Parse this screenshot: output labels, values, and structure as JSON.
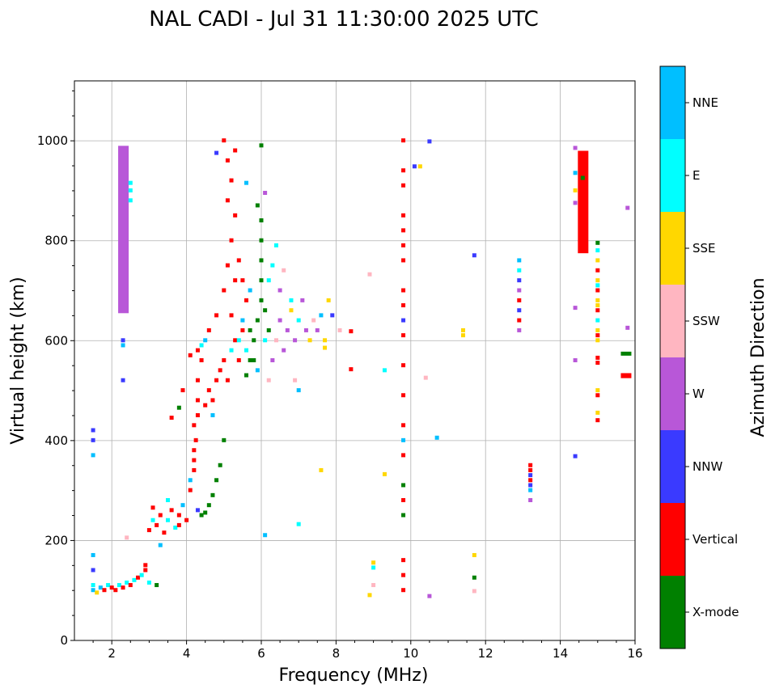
{
  "chart_data": {
    "type": "scatter",
    "title": "NAL CADI - Jul 31 11:30:00 2025 UTC",
    "xlabel": "Frequency (MHz)",
    "ylabel": "Virtual height (km)",
    "xlim": [
      1,
      16
    ],
    "ylim": [
      0,
      1120
    ],
    "xticks": [
      2,
      4,
      6,
      8,
      10,
      12,
      14,
      16
    ],
    "yticks": [
      0,
      200,
      400,
      600,
      800,
      1000
    ],
    "grid": true,
    "colorbar": {
      "label": "Azimuth Direction",
      "categories": [
        "X-mode",
        "Vertical",
        "NNW",
        "W",
        "SSW",
        "SSE",
        "E",
        "NNE"
      ],
      "colors": [
        "#008000",
        "#ff0000",
        "#3a3aff",
        "#b857d8",
        "#ffb6c1",
        "#ffd700",
        "#00ffff",
        "#00bfff"
      ]
    },
    "segments_note": "[freq_MHz, h_start_km, h_end_km, direction_index]",
    "segments": [
      [
        2.3,
        655,
        990,
        3
      ],
      [
        14.6,
        775,
        980,
        1
      ],
      [
        15.75,
        525,
        535,
        1
      ],
      [
        15.75,
        570,
        578,
        0
      ]
    ],
    "points_note": "[freq_MHz, height_km, direction_index]",
    "points": [
      [
        1.5,
        100,
        7
      ],
      [
        1.5,
        110,
        6
      ],
      [
        1.5,
        140,
        2
      ],
      [
        1.5,
        170,
        7
      ],
      [
        1.5,
        370,
        7
      ],
      [
        1.5,
        400,
        2
      ],
      [
        1.5,
        420,
        2
      ],
      [
        1.6,
        95,
        5
      ],
      [
        1.7,
        105,
        7
      ],
      [
        1.8,
        100,
        1
      ],
      [
        1.9,
        110,
        6
      ],
      [
        2.0,
        105,
        1
      ],
      [
        2.1,
        100,
        1
      ],
      [
        2.2,
        110,
        6
      ],
      [
        2.3,
        105,
        1
      ],
      [
        2.4,
        115,
        6
      ],
      [
        2.5,
        110,
        1
      ],
      [
        2.6,
        120,
        6
      ],
      [
        2.7,
        125,
        1
      ],
      [
        2.8,
        130,
        6
      ],
      [
        2.9,
        140,
        1
      ],
      [
        2.9,
        150,
        1
      ],
      [
        3.0,
        115,
        6
      ],
      [
        3.2,
        110,
        0
      ],
      [
        3.3,
        190,
        7
      ],
      [
        2.3,
        520,
        2
      ],
      [
        2.3,
        590,
        7
      ],
      [
        2.3,
        600,
        2
      ],
      [
        2.5,
        880,
        6
      ],
      [
        2.5,
        900,
        6
      ],
      [
        2.5,
        915,
        6
      ],
      [
        2.4,
        205,
        4
      ],
      [
        3.0,
        220,
        1
      ],
      [
        3.1,
        240,
        6
      ],
      [
        3.2,
        230,
        1
      ],
      [
        3.3,
        250,
        1
      ],
      [
        3.4,
        215,
        1
      ],
      [
        3.5,
        240,
        6
      ],
      [
        3.6,
        260,
        1
      ],
      [
        3.7,
        225,
        6
      ],
      [
        3.8,
        250,
        1
      ],
      [
        3.9,
        270,
        7
      ],
      [
        4.0,
        240,
        1
      ],
      [
        3.1,
        265,
        1
      ],
      [
        3.5,
        280,
        6
      ],
      [
        3.8,
        230,
        1
      ],
      [
        4.1,
        300,
        1
      ],
      [
        4.1,
        320,
        7
      ],
      [
        4.2,
        340,
        1
      ],
      [
        4.2,
        360,
        1
      ],
      [
        4.2,
        380,
        1
      ],
      [
        4.25,
        400,
        1
      ],
      [
        4.2,
        430,
        1
      ],
      [
        4.3,
        260,
        2
      ],
      [
        4.4,
        250,
        0
      ],
      [
        4.5,
        255,
        0
      ],
      [
        4.6,
        270,
        0
      ],
      [
        4.7,
        290,
        0
      ],
      [
        4.8,
        320,
        0
      ],
      [
        4.9,
        350,
        0
      ],
      [
        5.0,
        400,
        0
      ],
      [
        4.3,
        450,
        1
      ],
      [
        4.3,
        480,
        1
      ],
      [
        4.3,
        520,
        1
      ],
      [
        4.4,
        560,
        1
      ],
      [
        4.4,
        590,
        6
      ],
      [
        4.5,
        470,
        1
      ],
      [
        4.6,
        500,
        1
      ],
      [
        4.7,
        480,
        1
      ],
      [
        4.8,
        520,
        1
      ],
      [
        4.9,
        540,
        1
      ],
      [
        5.0,
        560,
        1
      ],
      [
        5.1,
        520,
        1
      ],
      [
        5.2,
        580,
        6
      ],
      [
        5.3,
        600,
        1
      ],
      [
        5.4,
        560,
        1
      ],
      [
        5.5,
        620,
        1
      ],
      [
        4.1,
        570,
        1
      ],
      [
        4.3,
        580,
        1
      ],
      [
        4.5,
        600,
        7
      ],
      [
        4.6,
        620,
        1
      ],
      [
        4.8,
        650,
        1
      ],
      [
        5.0,
        700,
        1
      ],
      [
        5.1,
        750,
        1
      ],
      [
        5.2,
        800,
        1
      ],
      [
        5.3,
        850,
        1
      ],
      [
        5.1,
        880,
        1
      ],
      [
        5.2,
        920,
        1
      ],
      [
        5.1,
        960,
        1
      ],
      [
        5.3,
        980,
        1
      ],
      [
        5.0,
        1000,
        1
      ],
      [
        5.4,
        760,
        1
      ],
      [
        5.5,
        720,
        1
      ],
      [
        5.6,
        680,
        1
      ],
      [
        5.3,
        720,
        1
      ],
      [
        5.2,
        650,
        1
      ],
      [
        4.7,
        450,
        7
      ],
      [
        3.9,
        500,
        1
      ],
      [
        3.8,
        465,
        0
      ],
      [
        3.6,
        445,
        1
      ],
      [
        4.8,
        975,
        2
      ],
      [
        5.6,
        530,
        0
      ],
      [
        5.7,
        560,
        0
      ],
      [
        5.8,
        600,
        0
      ],
      [
        5.9,
        640,
        0
      ],
      [
        6.0,
        680,
        0
      ],
      [
        6.0,
        720,
        0
      ],
      [
        6.0,
        760,
        0
      ],
      [
        6.0,
        800,
        0
      ],
      [
        6.0,
        840,
        0
      ],
      [
        6.0,
        990,
        0
      ],
      [
        5.9,
        870,
        0
      ],
      [
        5.8,
        560,
        0
      ],
      [
        5.7,
        620,
        0
      ],
      [
        5.6,
        580,
        6
      ],
      [
        5.5,
        640,
        7
      ],
      [
        5.4,
        600,
        6
      ],
      [
        5.7,
        700,
        7
      ],
      [
        5.9,
        540,
        7
      ],
      [
        6.1,
        600,
        6
      ],
      [
        6.2,
        620,
        0
      ],
      [
        6.1,
        660,
        0
      ],
      [
        6.2,
        720,
        6
      ],
      [
        6.1,
        210,
        7
      ],
      [
        6.1,
        895,
        3
      ],
      [
        5.6,
        915,
        7
      ],
      [
        6.3,
        560,
        3
      ],
      [
        6.4,
        600,
        4
      ],
      [
        6.5,
        640,
        3
      ],
      [
        6.6,
        580,
        3
      ],
      [
        6.7,
        620,
        3
      ],
      [
        6.8,
        660,
        5
      ],
      [
        6.9,
        600,
        3
      ],
      [
        7.0,
        640,
        6
      ],
      [
        7.1,
        680,
        3
      ],
      [
        7.2,
        620,
        3
      ],
      [
        7.3,
        600,
        5
      ],
      [
        7.4,
        640,
        4
      ],
      [
        7.5,
        620,
        3
      ],
      [
        7.6,
        650,
        7
      ],
      [
        7.7,
        600,
        5
      ],
      [
        6.3,
        750,
        6
      ],
      [
        6.4,
        790,
        6
      ],
      [
        6.5,
        700,
        3
      ],
      [
        6.6,
        740,
        4
      ],
      [
        6.8,
        680,
        6
      ],
      [
        7.0,
        500,
        7
      ],
      [
        6.9,
        520,
        4
      ],
      [
        6.2,
        520,
        4
      ],
      [
        7.6,
        340,
        5
      ],
      [
        7.7,
        585,
        5
      ],
      [
        7.8,
        680,
        5
      ],
      [
        7.9,
        650,
        2
      ],
      [
        8.1,
        620,
        4
      ],
      [
        8.4,
        618,
        1
      ],
      [
        8.4,
        542,
        1
      ],
      [
        7.0,
        232,
        6
      ],
      [
        8.9,
        732,
        4
      ],
      [
        8.9,
        90,
        5
      ],
      [
        9.0,
        110,
        4
      ],
      [
        9.0,
        155,
        5
      ],
      [
        9.0,
        145,
        6
      ],
      [
        9.3,
        540,
        6
      ],
      [
        9.3,
        332,
        5
      ],
      [
        9.8,
        100,
        1
      ],
      [
        9.8,
        130,
        1
      ],
      [
        9.8,
        160,
        1
      ],
      [
        9.8,
        250,
        0
      ],
      [
        9.8,
        280,
        1
      ],
      [
        9.8,
        310,
        0
      ],
      [
        9.8,
        370,
        1
      ],
      [
        9.8,
        400,
        7
      ],
      [
        9.8,
        430,
        1
      ],
      [
        9.8,
        490,
        1
      ],
      [
        9.8,
        550,
        1
      ],
      [
        9.8,
        610,
        1
      ],
      [
        9.8,
        640,
        2
      ],
      [
        9.8,
        670,
        1
      ],
      [
        9.8,
        700,
        1
      ],
      [
        9.8,
        760,
        1
      ],
      [
        9.8,
        790,
        1
      ],
      [
        9.8,
        820,
        1
      ],
      [
        9.8,
        850,
        1
      ],
      [
        9.8,
        910,
        1
      ],
      [
        9.8,
        940,
        1
      ],
      [
        9.8,
        1000,
        1
      ],
      [
        10.1,
        948,
        2
      ],
      [
        10.25,
        948,
        5
      ],
      [
        10.4,
        525,
        4
      ],
      [
        10.5,
        998,
        2
      ],
      [
        10.5,
        88,
        3
      ],
      [
        10.7,
        405,
        7
      ],
      [
        11.4,
        610,
        5
      ],
      [
        11.4,
        620,
        5
      ],
      [
        11.7,
        770,
        2
      ],
      [
        11.7,
        170,
        5
      ],
      [
        11.7,
        125,
        0
      ],
      [
        11.7,
        98,
        4
      ],
      [
        12.9,
        620,
        3
      ],
      [
        12.9,
        640,
        1
      ],
      [
        12.9,
        660,
        2
      ],
      [
        12.9,
        680,
        1
      ],
      [
        12.9,
        700,
        3
      ],
      [
        12.9,
        720,
        2
      ],
      [
        12.9,
        740,
        6
      ],
      [
        12.9,
        760,
        7
      ],
      [
        13.2,
        280,
        3
      ],
      [
        13.2,
        300,
        7
      ],
      [
        13.2,
        310,
        2
      ],
      [
        13.2,
        320,
        1
      ],
      [
        13.2,
        330,
        2
      ],
      [
        13.2,
        340,
        1
      ],
      [
        13.2,
        350,
        1
      ],
      [
        14.4,
        985,
        3
      ],
      [
        14.4,
        935,
        7
      ],
      [
        14.4,
        900,
        5
      ],
      [
        14.4,
        875,
        3
      ],
      [
        14.4,
        665,
        3
      ],
      [
        14.4,
        560,
        3
      ],
      [
        14.4,
        368,
        2
      ],
      [
        14.6,
        925,
        0
      ],
      [
        15.0,
        440,
        1
      ],
      [
        15.0,
        455,
        5
      ],
      [
        15.0,
        490,
        1
      ],
      [
        15.0,
        500,
        5
      ],
      [
        15.0,
        555,
        1
      ],
      [
        15.0,
        565,
        1
      ],
      [
        15.0,
        610,
        1
      ],
      [
        15.0,
        620,
        5
      ],
      [
        15.0,
        640,
        6
      ],
      [
        15.0,
        660,
        1
      ],
      [
        15.0,
        680,
        5
      ],
      [
        15.0,
        700,
        1
      ],
      [
        15.0,
        720,
        5
      ],
      [
        15.0,
        740,
        1
      ],
      [
        15.0,
        760,
        5
      ],
      [
        15.0,
        780,
        6
      ],
      [
        15.0,
        795,
        0
      ],
      [
        15.0,
        600,
        5
      ],
      [
        15.0,
        670,
        5
      ],
      [
        15.0,
        710,
        6
      ],
      [
        15.8,
        865,
        3
      ],
      [
        15.8,
        625,
        3
      ]
    ]
  }
}
